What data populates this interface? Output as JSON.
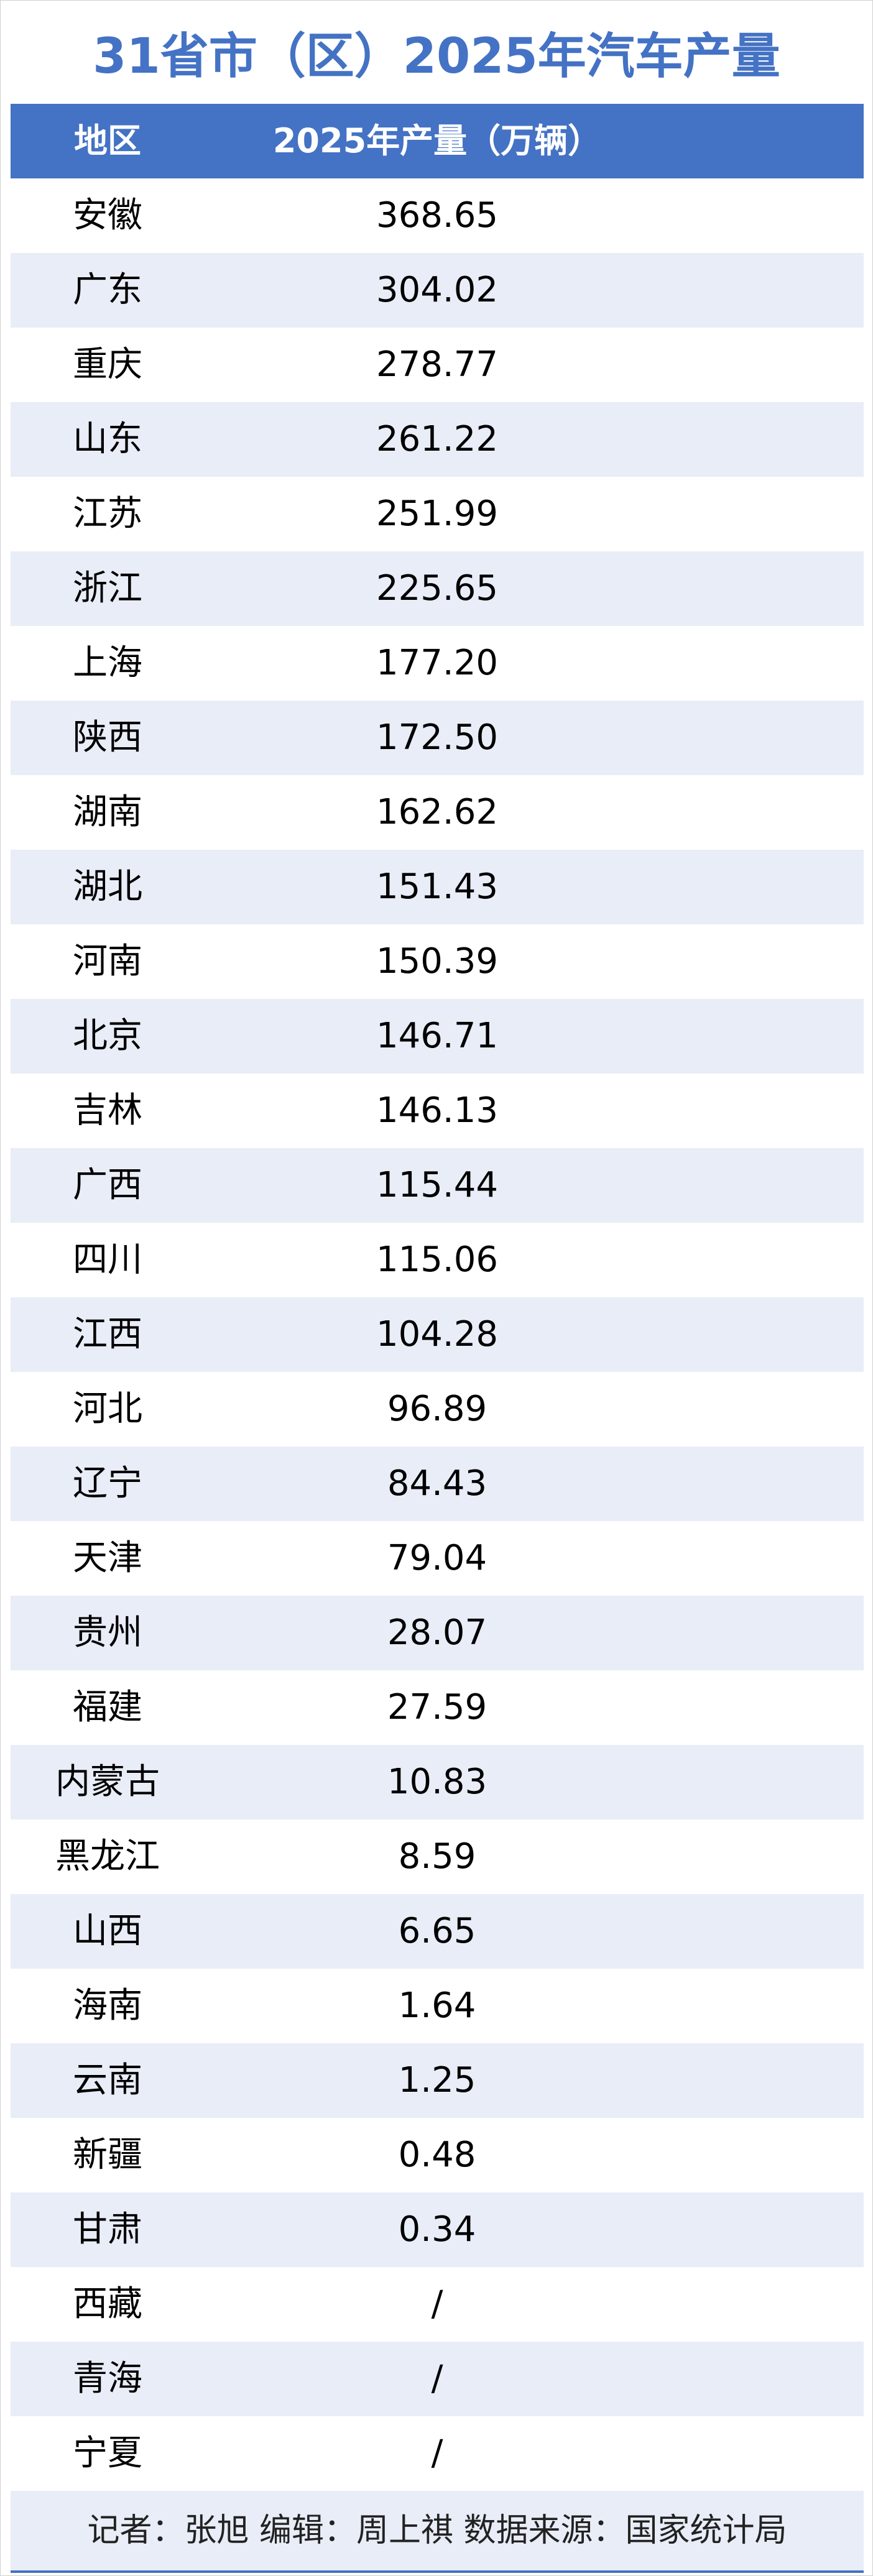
{
  "title": "31省市（区）2025年汽车产量",
  "table": {
    "header": [
      "地区",
      "2025年产量（万辆）"
    ],
    "rows": [
      [
        "安徽",
        "368.65"
      ],
      [
        "广东",
        "304.02"
      ],
      [
        "重庆",
        "278.77"
      ],
      [
        "山东",
        "261.22"
      ],
      [
        "江苏",
        "251.99"
      ],
      [
        "浙江",
        "225.65"
      ],
      [
        "上海",
        "177.20"
      ],
      [
        "陕西",
        "172.50"
      ],
      [
        "湖南",
        "162.62"
      ],
      [
        "湖北",
        "151.43"
      ],
      [
        "河南",
        "150.39"
      ],
      [
        "北京",
        "146.71"
      ],
      [
        "吉林",
        "146.13"
      ],
      [
        "广西",
        "115.44"
      ],
      [
        "四川",
        "115.06"
      ],
      [
        "江西",
        "104.28"
      ],
      [
        "河北",
        "96.89"
      ],
      [
        "辽宁",
        "84.43"
      ],
      [
        "天津",
        "79.04"
      ],
      [
        "贵州",
        "28.07"
      ],
      [
        "福建",
        "27.59"
      ],
      [
        "内蒙古",
        "10.83"
      ],
      [
        "黑龙江",
        "8.59"
      ],
      [
        "山西",
        "6.65"
      ],
      [
        "海南",
        "1.64"
      ],
      [
        "云南",
        "1.25"
      ],
      [
        "新疆",
        "0.48"
      ],
      [
        "甘肃",
        "0.34"
      ],
      [
        "西藏",
        "/"
      ],
      [
        "青海",
        "/"
      ],
      [
        "宁夏",
        "/"
      ]
    ]
  },
  "footer": "记者：张旭 编辑：周上祺 数据来源：国家统计局"
}
